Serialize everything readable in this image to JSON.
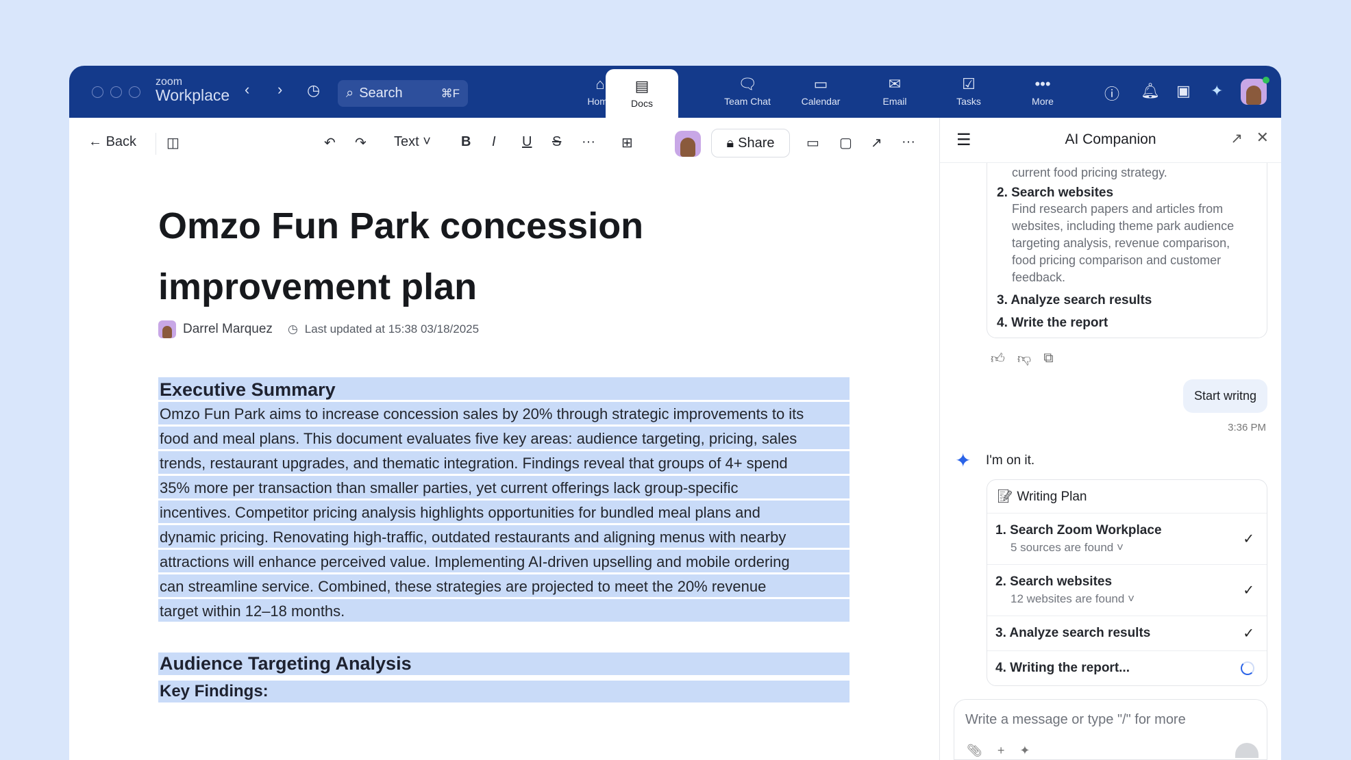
{
  "app": {
    "logo_small": "zoom",
    "logo_name": "Workplace",
    "search_label": "Search",
    "search_shortcut": "⌘F"
  },
  "nav": [
    {
      "label": "Home",
      "icon": "home-icon"
    },
    {
      "label": "Docs",
      "icon": "doc-icon",
      "active": true
    },
    {
      "label": "Team Chat",
      "icon": "chat-icon"
    },
    {
      "label": "Calendar",
      "icon": "calendar-icon"
    },
    {
      "label": "Email",
      "icon": "email-icon"
    },
    {
      "label": "Tasks",
      "icon": "tasks-icon"
    },
    {
      "label": "More",
      "icon": "more-icon"
    }
  ],
  "toolbar": {
    "back": "Back",
    "text_style": "Text",
    "share": "Share"
  },
  "doc": {
    "title": "Omzo Fun Park concession improvement plan",
    "author": "Darrel Marquez",
    "updated": "Last updated at 15:38 03/18/2025",
    "section1": "Executive Summary",
    "paragraph_lines": [
      "Omzo Fun Park aims to increase concession sales by 20% through strategic improvements to its",
      "food and meal plans. This document evaluates five key areas: audience targeting, pricing, sales",
      "trends, restaurant upgrades, and thematic integration. Findings reveal that groups of 4+ spend",
      "35% more per transaction than smaller parties, yet current offerings lack group-specific",
      "incentives. Competitor pricing analysis highlights opportunities for bundled meal plans and",
      "dynamic pricing. Renovating high-traffic, outdated restaurants and aligning menus with nearby",
      "attractions will enhance perceived value. Implementing AI-driven upselling and mobile ordering",
      "can streamline service. Combined, these strategies are projected to meet the 20% revenue",
      "target within 12–18 months."
    ],
    "section2": "Audience Targeting Analysis",
    "section3": "Key Findings:"
  },
  "ai": {
    "title": "AI Companion",
    "cut_text": "current food pricing strategy.",
    "plan1": [
      {
        "step": "2. Search websites",
        "desc": "Find research papers and articles from websites, including theme park audience targeting analysis, revenue comparison, food pricing comparison and customer feedback."
      },
      {
        "step": "3. Analyze search results"
      },
      {
        "step": "4. Write the report"
      }
    ],
    "user_msg": "Start writng",
    "user_time": "3:36 PM",
    "reply": "I'm on it.",
    "plan_title": "Writing Plan",
    "plan2": [
      {
        "step": "1. Search Zoom Workplace",
        "sub": "5 sources are found",
        "status": "done"
      },
      {
        "step": "2. Search websites",
        "sub": "12 websites are found",
        "status": "done"
      },
      {
        "step": "3. Analyze search results",
        "status": "done"
      },
      {
        "step": "4. Writing the report...",
        "status": "loading"
      }
    ],
    "input_placeholder": "Write a message or type \"/\"  for more"
  },
  "colors": {
    "topbar": "#143a8b",
    "highlight": "#c9dbf8",
    "background": "#d9e6fb"
  }
}
